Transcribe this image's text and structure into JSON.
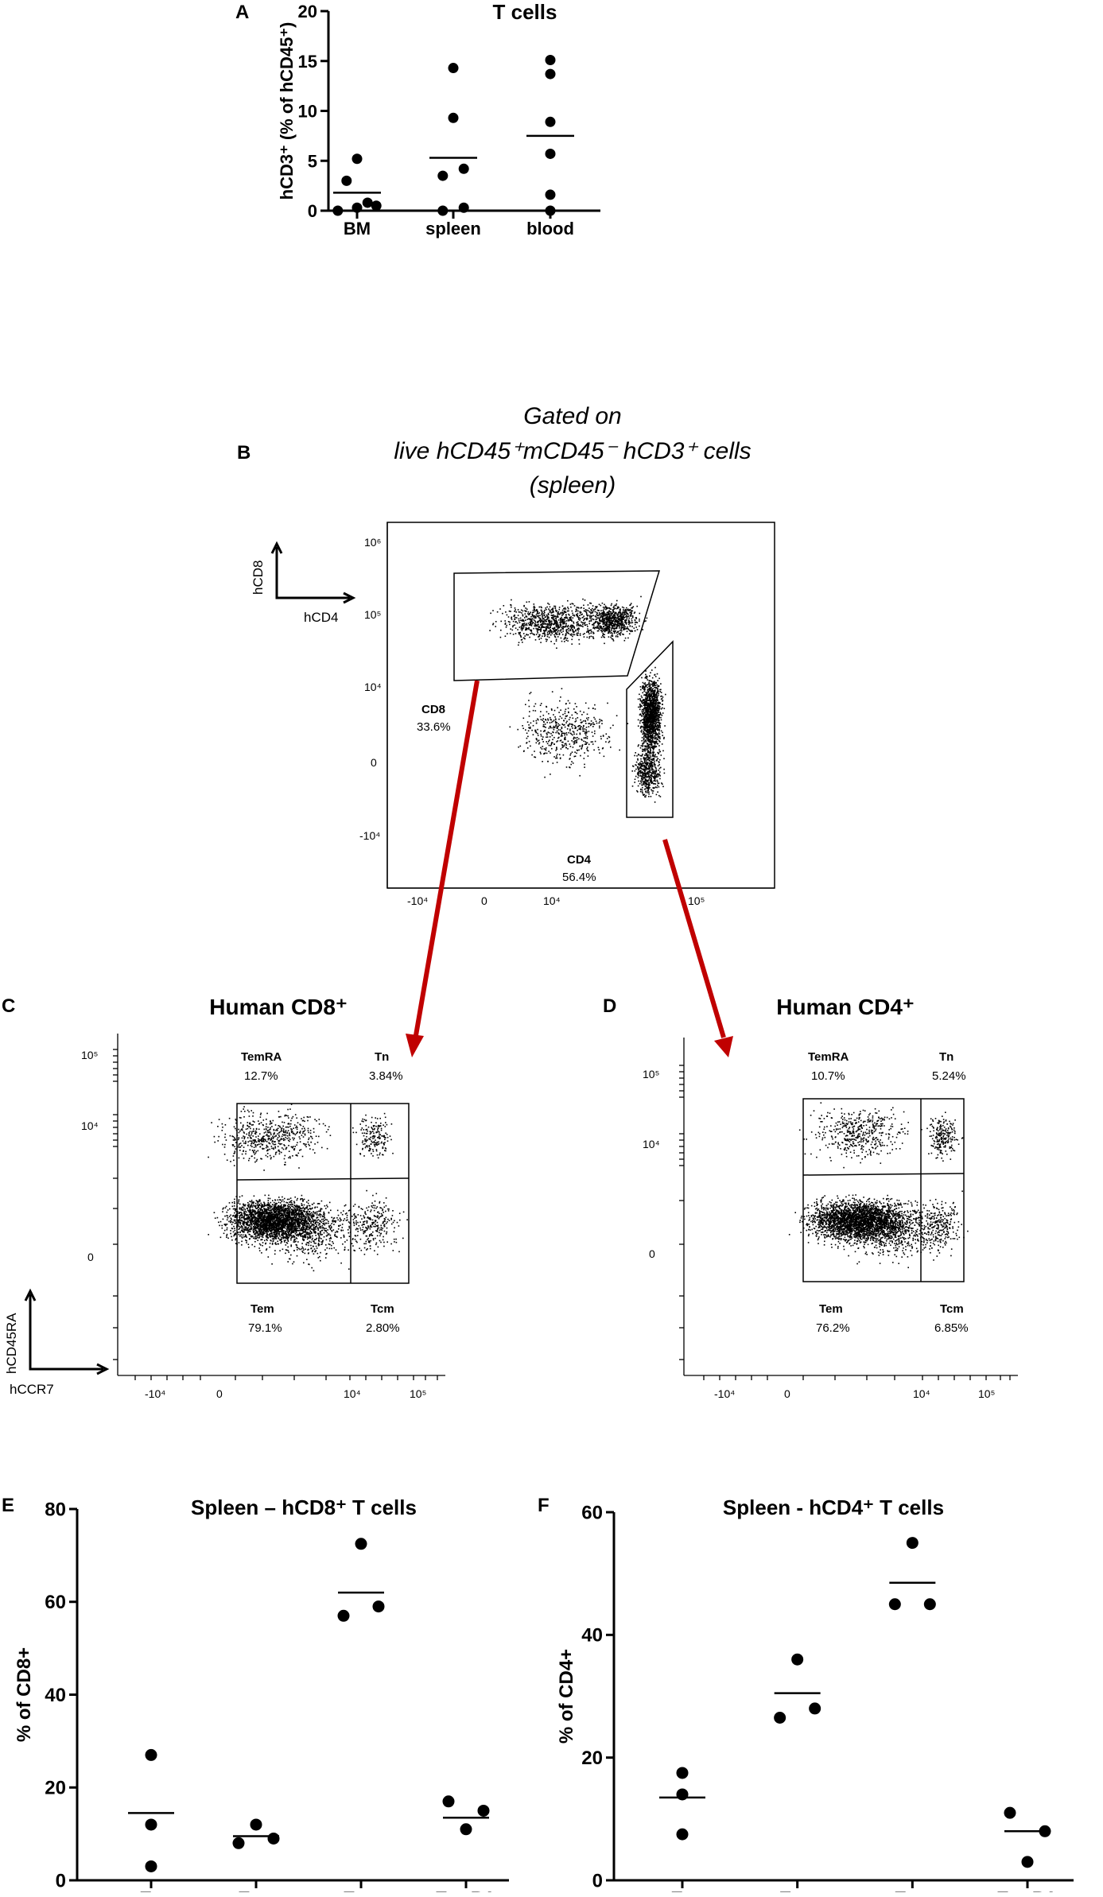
{
  "panel_labels": {
    "A": "A",
    "B": "B",
    "C": "C",
    "D": "D",
    "E": "E",
    "F": "F"
  },
  "chart_data": [
    {
      "id": "A",
      "type": "scatter",
      "title": "T cells",
      "ylabel": "hCD3⁺ (% of hCD45⁺)",
      "categories": [
        "BM",
        "spleen",
        "blood"
      ],
      "ylim": [
        0,
        20
      ],
      "yticks": [
        0,
        5,
        10,
        15,
        20
      ],
      "series": [
        {
          "category": "BM",
          "values": [
            5.2,
            3.0,
            0.8,
            0.0,
            0.3,
            0.5
          ],
          "offsets": [
            0,
            -0.6,
            0.6,
            -1.1,
            0,
            1.1
          ],
          "mean": 1.8
        },
        {
          "category": "spleen",
          "values": [
            14.3,
            9.3,
            4.2,
            3.5,
            0.3,
            0.0
          ],
          "offsets": [
            0,
            0,
            0.6,
            -0.6,
            0.6,
            -0.6
          ],
          "mean": 5.3
        },
        {
          "category": "blood",
          "values": [
            15.1,
            13.7,
            8.9,
            5.7,
            1.6,
            0.0
          ],
          "offsets": [
            0,
            0,
            0,
            0,
            0,
            0
          ],
          "mean": 7.5
        }
      ]
    },
    {
      "id": "E",
      "type": "scatter",
      "title": "Spleen – hCD8⁺ T cells",
      "ylabel": "% of CD8+",
      "categories": [
        "Tn",
        "Tcm",
        "Tem",
        "TemRA"
      ],
      "ylim": [
        0,
        80
      ],
      "yticks": [
        0,
        20,
        40,
        60,
        80
      ],
      "series": [
        {
          "category": "Tn",
          "values": [
            27,
            12,
            3
          ],
          "offsets": [
            0,
            0,
            0
          ],
          "mean": 14.5
        },
        {
          "category": "Tcm",
          "values": [
            12,
            8,
            9
          ],
          "offsets": [
            0,
            -1,
            1
          ],
          "mean": 9.5
        },
        {
          "category": "Tem",
          "values": [
            72.5,
            57,
            59
          ],
          "offsets": [
            0,
            -1,
            1
          ],
          "mean": 62
        },
        {
          "category": "TemRA",
          "values": [
            17,
            11,
            15
          ],
          "offsets": [
            -1,
            0,
            1
          ],
          "mean": 13.5
        }
      ]
    },
    {
      "id": "F",
      "type": "scatter",
      "title": "Spleen - hCD4⁺ T cells",
      "ylabel": "% of CD4+",
      "categories": [
        "Tn",
        "Tcm",
        "Tem",
        "TemRA"
      ],
      "ylim": [
        0,
        60
      ],
      "yticks": [
        0,
        20,
        40,
        60
      ],
      "series": [
        {
          "category": "Tn",
          "values": [
            17.5,
            14,
            7.5
          ],
          "offsets": [
            0,
            0,
            0
          ],
          "mean": 13.5
        },
        {
          "category": "Tcm",
          "values": [
            36,
            26.5,
            28
          ],
          "offsets": [
            0,
            -1,
            1
          ],
          "mean": 30.5
        },
        {
          "category": "Tem",
          "values": [
            55,
            45,
            45
          ],
          "offsets": [
            0,
            -1,
            1
          ],
          "mean": 48.5
        },
        {
          "category": "TemRA",
          "values": [
            11,
            3,
            8
          ],
          "offsets": [
            -1,
            0,
            1
          ],
          "mean": 8
        }
      ]
    }
  ],
  "flow": {
    "B": {
      "gating_title_1": "Gated on",
      "gating_title_2": "live hCD45⁺mCD45⁻ hCD3⁺ cells",
      "gating_title_3": "(spleen)",
      "xaxis_label": "hCD4",
      "yaxis_label": "hCD8",
      "yticks": [
        "10⁶",
        "10⁵",
        "10⁴",
        "0",
        "-10⁴"
      ],
      "xticks": [
        "-10⁴",
        "0",
        "10⁴",
        "10⁵"
      ],
      "gate_cd8_name": "CD8",
      "gate_cd8_pct": "33.6%",
      "gate_cd4_name": "CD4",
      "gate_cd4_pct": "56.4%",
      "arrow_color": "#c00000"
    },
    "C": {
      "title": "Human CD8⁺",
      "xaxis_label": "hCCR7",
      "yaxis_label": "hCD45RA",
      "yticks": [
        "10⁵",
        "10⁴",
        "0"
      ],
      "xticks": [
        "-10⁴",
        "0",
        "10⁴",
        "10⁵"
      ],
      "q_temra": "TemRA",
      "q_temra_pct": "12.7%",
      "q_tn": "Tn",
      "q_tn_pct": "3.84%",
      "q_tem": "Tem",
      "q_tem_pct": "79.1%",
      "q_tcm": "Tcm",
      "q_tcm_pct": "2.80%"
    },
    "D": {
      "title": "Human CD4⁺",
      "yticks": [
        "10⁵",
        "10⁴",
        "0"
      ],
      "xticks": [
        "-10⁴",
        "0",
        "10⁴",
        "10⁵"
      ],
      "q_temra": "TemRA",
      "q_temra_pct": "10.7%",
      "q_tn": "Tn",
      "q_tn_pct": "5.24%",
      "q_tem": "Tem",
      "q_tem_pct": "76.2%",
      "q_tcm": "Tcm",
      "q_tcm_pct": "6.85%"
    }
  }
}
